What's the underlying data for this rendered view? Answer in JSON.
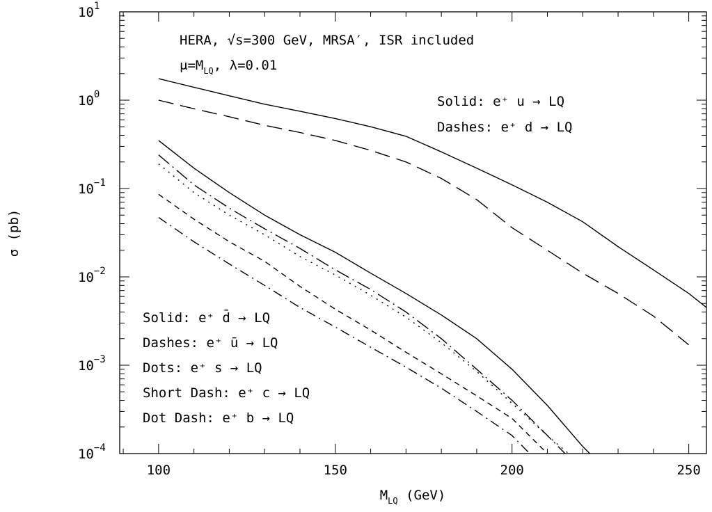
{
  "chart_data": {
    "type": "line",
    "log_y": true,
    "ylabel": "σ (pb)",
    "xlabel": {
      "main": "M",
      "sub": "LQ",
      "rest": " (GeV)"
    },
    "annotations": [
      {
        "main": "HERA, √s=300 GeV, MRSA′, ISR included"
      },
      {
        "main": "μ=M",
        "sub": "LQ",
        "rest": ", λ=0.01"
      }
    ],
    "xlim": [
      89,
      255
    ],
    "xticks": [
      100,
      150,
      200,
      250
    ],
    "xminorticks": [
      90,
      110,
      120,
      130,
      140,
      160,
      170,
      180,
      190,
      210,
      220,
      230,
      240
    ],
    "ylim": [
      0.0001,
      10
    ],
    "yticks": [
      {
        "value": 10,
        "label": "10",
        "exponent": "1"
      },
      {
        "value": 1,
        "label": "10",
        "exponent": "0"
      },
      {
        "value": 0.1,
        "label": "10",
        "exponent": "−1"
      },
      {
        "value": 0.01,
        "label": "10",
        "exponent": "−2"
      },
      {
        "value": 0.001,
        "label": "10",
        "exponent": "−3"
      },
      {
        "value": 0.0001,
        "label": "10",
        "exponent": "−4"
      }
    ],
    "yminorticks": [
      0.0002,
      0.0003,
      0.0004,
      0.0005,
      0.0006,
      0.0007,
      0.0008,
      0.0009,
      0.002,
      0.003,
      0.004,
      0.005,
      0.006,
      0.007,
      0.008,
      0.009,
      0.02,
      0.03,
      0.04,
      0.05,
      0.06,
      0.07,
      0.08,
      0.09,
      0.2,
      0.3,
      0.4,
      0.5,
      0.6,
      0.7,
      0.8,
      0.9,
      2,
      3,
      4,
      5,
      6,
      7,
      8,
      9
    ],
    "series": [
      {
        "name": "Solid: e⁺ u → LQ",
        "color": "#000000",
        "dash": "solid",
        "x": [
          100,
          110,
          120,
          130,
          140,
          150,
          160,
          170,
          180,
          190,
          200,
          210,
          220,
          230,
          240,
          250,
          255
        ],
        "values": [
          1.75,
          1.4,
          1.12,
          0.9,
          0.75,
          0.62,
          0.5,
          0.39,
          0.26,
          0.17,
          0.11,
          0.07,
          0.042,
          0.022,
          0.012,
          0.0065,
          0.0045
        ]
      },
      {
        "name": "Dashes: e⁺ d → LQ",
        "color": "#000000",
        "dash": "long",
        "x": [
          100,
          110,
          120,
          130,
          140,
          150,
          160,
          170,
          180,
          190,
          200,
          210,
          220,
          230,
          240,
          250
        ],
        "values": [
          1.0,
          0.8,
          0.65,
          0.52,
          0.43,
          0.35,
          0.27,
          0.2,
          0.13,
          0.075,
          0.036,
          0.02,
          0.011,
          0.0065,
          0.0036,
          0.0017
        ]
      },
      {
        "name": "Solid: e⁺ d̄ → LQ",
        "color": "#000000",
        "dash": "solid",
        "x": [
          100,
          110,
          120,
          130,
          140,
          150,
          160,
          170,
          180,
          190,
          200,
          210,
          220,
          222
        ],
        "values": [
          0.35,
          0.17,
          0.09,
          0.05,
          0.03,
          0.019,
          0.011,
          0.0065,
          0.0037,
          0.002,
          0.0009,
          0.00035,
          0.00012,
          0.0001
        ]
      },
      {
        "name": "Dashes: e⁺ ū → LQ",
        "color": "#000000",
        "dash": "dashdotlong",
        "x": [
          100,
          110,
          120,
          130,
          140,
          150,
          160,
          170,
          180,
          190,
          200,
          210,
          215
        ],
        "values": [
          0.24,
          0.11,
          0.06,
          0.035,
          0.021,
          0.012,
          0.0072,
          0.004,
          0.002,
          0.0009,
          0.0004,
          0.00016,
          0.0001
        ]
      },
      {
        "name": "Dots: e⁺ s → LQ",
        "color": "#000000",
        "dash": "dot",
        "x": [
          100,
          110,
          120,
          130,
          140,
          150,
          160,
          170,
          180,
          190,
          200,
          210,
          216
        ],
        "values": [
          0.19,
          0.09,
          0.05,
          0.03,
          0.017,
          0.0105,
          0.0062,
          0.0035,
          0.0018,
          0.00085,
          0.00037,
          0.00016,
          0.0001
        ]
      },
      {
        "name": "Short Dash: e⁺ c → LQ",
        "color": "#000000",
        "dash": "short",
        "x": [
          100,
          110,
          120,
          130,
          140,
          150,
          160,
          170,
          180,
          190,
          200,
          210
        ],
        "values": [
          0.086,
          0.045,
          0.025,
          0.015,
          0.0078,
          0.0043,
          0.0025,
          0.0014,
          0.0008,
          0.00045,
          0.00025,
          0.0001
        ]
      },
      {
        "name": "Dot Dash: e⁺ b → LQ",
        "color": "#000000",
        "dash": "dashdot",
        "x": [
          100,
          110,
          120,
          130,
          140,
          150,
          160,
          170,
          180,
          190,
          200,
          205
        ],
        "values": [
          0.047,
          0.025,
          0.014,
          0.008,
          0.0045,
          0.0027,
          0.0016,
          0.00095,
          0.00055,
          0.0003,
          0.00016,
          0.0001
        ]
      }
    ]
  }
}
